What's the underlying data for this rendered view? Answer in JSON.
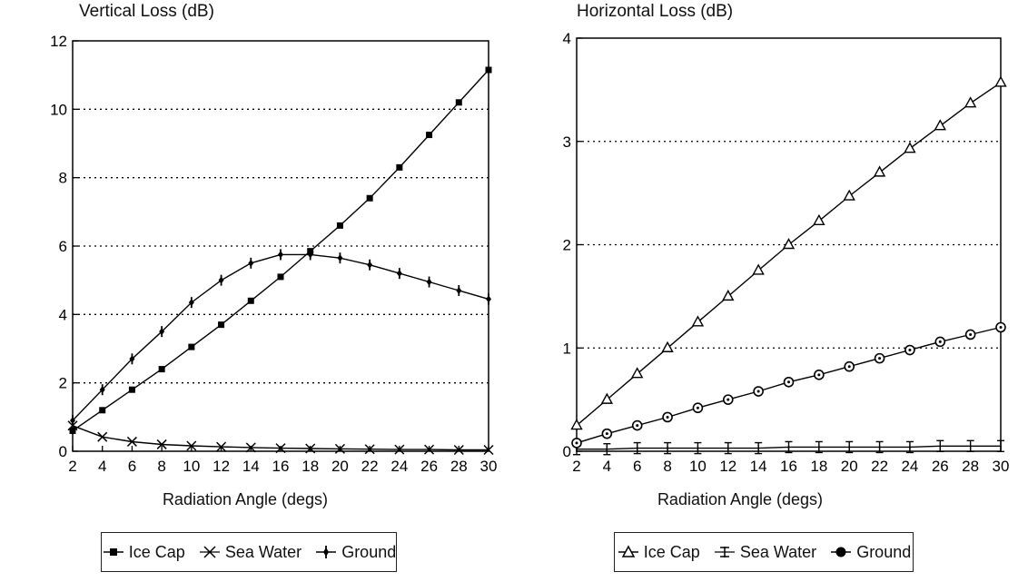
{
  "chart_data": [
    {
      "type": "line",
      "title": "Vertical Loss (dB)",
      "xlabel": "Radiation Angle (degs)",
      "ylabel": "",
      "x": [
        2,
        4,
        6,
        8,
        10,
        12,
        14,
        16,
        18,
        20,
        22,
        24,
        26,
        28,
        30
      ],
      "xlim": [
        2,
        30
      ],
      "ylim": [
        0,
        12
      ],
      "xticks": [
        "2",
        "4",
        "6",
        "8",
        "10",
        "12",
        "14",
        "16",
        "18",
        "20",
        "22",
        "24",
        "26",
        "28",
        "30"
      ],
      "yticks": [
        "0",
        "2",
        "4",
        "6",
        "8",
        "10",
        "12"
      ],
      "grid": "horizontal-dotted",
      "legend_position": "bottom",
      "series": [
        {
          "name": "Ice Cap",
          "marker": "square",
          "values": [
            0.6,
            1.2,
            1.8,
            2.4,
            3.05,
            3.7,
            4.4,
            5.1,
            5.85,
            6.6,
            7.4,
            8.3,
            9.25,
            10.2,
            11.15
          ]
        },
        {
          "name": "Sea Water",
          "marker": "x",
          "values": [
            0.75,
            0.42,
            0.28,
            0.2,
            0.16,
            0.13,
            0.11,
            0.09,
            0.08,
            0.07,
            0.06,
            0.05,
            0.05,
            0.04,
            0.04
          ]
        },
        {
          "name": "Ground",
          "marker": "plus",
          "values": [
            0.9,
            1.8,
            2.7,
            3.5,
            4.35,
            5.0,
            5.5,
            5.75,
            5.75,
            5.65,
            5.45,
            5.2,
            4.95,
            4.7,
            4.45
          ]
        }
      ]
    },
    {
      "type": "line",
      "title": "Horizontal Loss (dB)",
      "xlabel": "Radiation Angle (degs)",
      "ylabel": "",
      "x": [
        2,
        4,
        6,
        8,
        10,
        12,
        14,
        16,
        18,
        20,
        22,
        24,
        26,
        28,
        30
      ],
      "xlim": [
        2,
        30
      ],
      "ylim": [
        0,
        4
      ],
      "xticks": [
        "2",
        "4",
        "6",
        "8",
        "10",
        "12",
        "14",
        "16",
        "18",
        "20",
        "22",
        "24",
        "26",
        "28",
        "30"
      ],
      "yticks": [
        "0",
        "1",
        "2",
        "3",
        "4"
      ],
      "grid": "horizontal-dotted",
      "legend_position": "bottom",
      "series": [
        {
          "name": "Ice Cap",
          "marker": "triangle",
          "values": [
            0.25,
            0.5,
            0.75,
            1.0,
            1.25,
            1.5,
            1.75,
            2.0,
            2.23,
            2.47,
            2.7,
            2.93,
            3.15,
            3.37,
            3.57
          ]
        },
        {
          "name": "Sea Water",
          "marker": "asterisk",
          "values": [
            0.02,
            0.02,
            0.03,
            0.03,
            0.03,
            0.03,
            0.03,
            0.04,
            0.04,
            0.04,
            0.04,
            0.04,
            0.05,
            0.05,
            0.05
          ]
        },
        {
          "name": "Ground",
          "marker": "circle",
          "values": [
            0.08,
            0.17,
            0.25,
            0.33,
            0.42,
            0.5,
            0.58,
            0.67,
            0.74,
            0.82,
            0.9,
            0.98,
            1.06,
            1.13,
            1.2
          ]
        }
      ]
    }
  ]
}
